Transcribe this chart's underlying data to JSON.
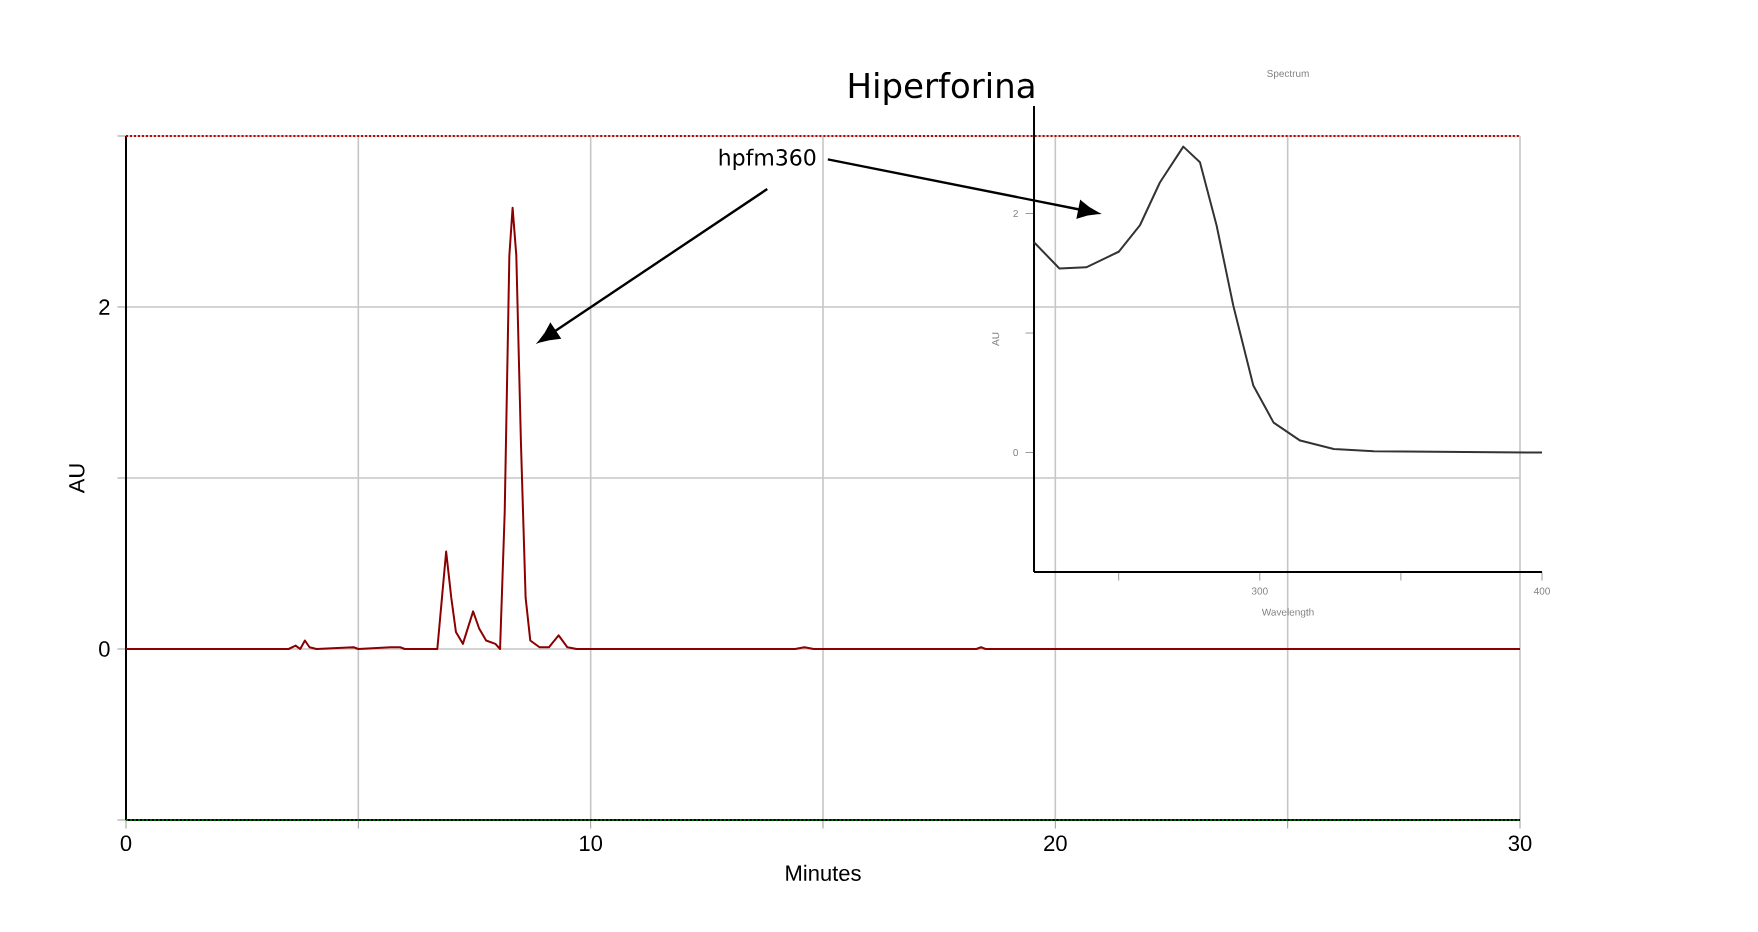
{
  "chart_data": [
    {
      "type": "line",
      "xlabel": "Minutes",
      "ylabel": "AU",
      "xlim": [
        0,
        30
      ],
      "ylim": [
        -1,
        3
      ],
      "xticks": [
        0,
        {
          "value": 5,
          "label": null
        },
        10,
        {
          "value": 15,
          "label": null
        },
        20,
        {
          "value": 25,
          "label": null
        },
        30
      ],
      "yticks": [
        {
          "value": -1,
          "label": null
        },
        0,
        {
          "value": 1,
          "label": null
        },
        2,
        {
          "value": 3,
          "label": null
        }
      ],
      "grid": true,
      "line_style": "solid",
      "series": [
        {
          "color": "#8b0000",
          "x": [
            0,
            3.5,
            3.65,
            3.75,
            3.85,
            3.95,
            4.1,
            4.9,
            5.0,
            5.7,
            5.9,
            6.0,
            6.7,
            6.8,
            6.89,
            7.0,
            7.1,
            7.25,
            7.47,
            7.6,
            7.75,
            7.95,
            8.05,
            8.15,
            8.25,
            8.32,
            8.4,
            8.5,
            8.6,
            8.7,
            8.9,
            9.1,
            9.31,
            9.5,
            9.7,
            14.4,
            14.6,
            14.8,
            18.3,
            18.4,
            18.5,
            30
          ],
          "values": [
            0,
            0,
            0.02,
            0,
            0.05,
            0.01,
            0,
            0.01,
            0,
            0.01,
            0.01,
            0,
            0,
            0.3,
            0.57,
            0.3,
            0.1,
            0.03,
            0.22,
            0.12,
            0.05,
            0.03,
            0,
            0.8,
            2.3,
            2.58,
            2.3,
            1.2,
            0.3,
            0.05,
            0.01,
            0.01,
            0.08,
            0.01,
            0,
            0,
            0.01,
            0,
            0,
            0.01,
            0,
            0
          ]
        }
      ],
      "ref_lines": [
        {
          "axis": "y",
          "value": 3,
          "color": "#c00000",
          "line_style": "dotted"
        },
        {
          "axis": "y",
          "value": -1,
          "color": "#006400",
          "line_style": "dotted"
        }
      ],
      "annotations": [
        "Hiperforina",
        "hpfm360"
      ]
    },
    {
      "type": "line",
      "title": "Spectrum",
      "xlabel": "Wavelength",
      "ylabel": "AU",
      "xlim": [
        220,
        400
      ],
      "ylim": [
        -1,
        2.9
      ],
      "xticks": [
        {
          "value": 250,
          "label": null
        },
        300,
        {
          "value": 350,
          "label": null
        },
        400
      ],
      "yticks": [
        0,
        {
          "value": 1,
          "label": null
        },
        2
      ],
      "line_style": "solid",
      "series": [
        {
          "color": "#333333",
          "x": [
            220,
            229,
            238.5,
            250,
            257.5,
            264.6,
            272.9,
            278.8,
            284.7,
            290.6,
            297.7,
            304.9,
            314.3,
            326.2,
            340.4,
            400
          ],
          "values": [
            1.76,
            1.54,
            1.55,
            1.68,
            1.9,
            2.26,
            2.56,
            2.43,
            1.9,
            1.23,
            0.56,
            0.25,
            0.1,
            0.03,
            0.01,
            0
          ]
        }
      ]
    }
  ]
}
